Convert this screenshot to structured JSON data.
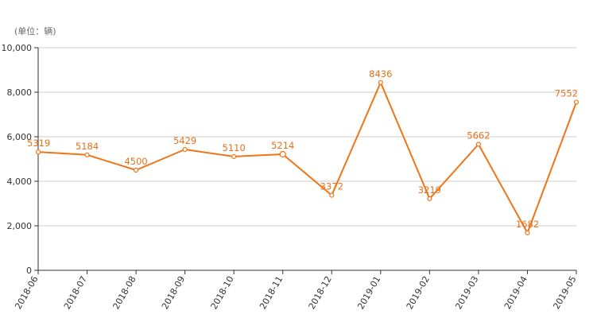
{
  "chart_data": {
    "type": "line",
    "unit_label": "(单位：辆)",
    "x": [
      "2018-06",
      "2018-07",
      "2018-08",
      "2018-09",
      "2018-10",
      "2018-11",
      "2018-12",
      "2019-01",
      "2019-02",
      "2019-03",
      "2019-04",
      "2019-05"
    ],
    "series": [
      {
        "values": [
          5319,
          5184,
          4500,
          5429,
          5110,
          5214,
          3372,
          8436,
          3219,
          5662,
          1682,
          7552
        ],
        "labels": [
          "5319",
          "5184",
          "4500",
          "5429",
          "5110",
          "5214",
          "3372",
          "8436",
          "3219",
          "5662",
          "1682",
          "7552"
        ],
        "color": "#f07416"
      }
    ],
    "ylim": [
      0,
      10000
    ],
    "yticks": [
      0,
      2000,
      4000,
      6000,
      8000,
      10000
    ],
    "ytick_labels": [
      "0",
      "2,000",
      "4,000",
      "6,000",
      "8,000",
      "10,000"
    ],
    "grid": true,
    "legend": "none"
  }
}
